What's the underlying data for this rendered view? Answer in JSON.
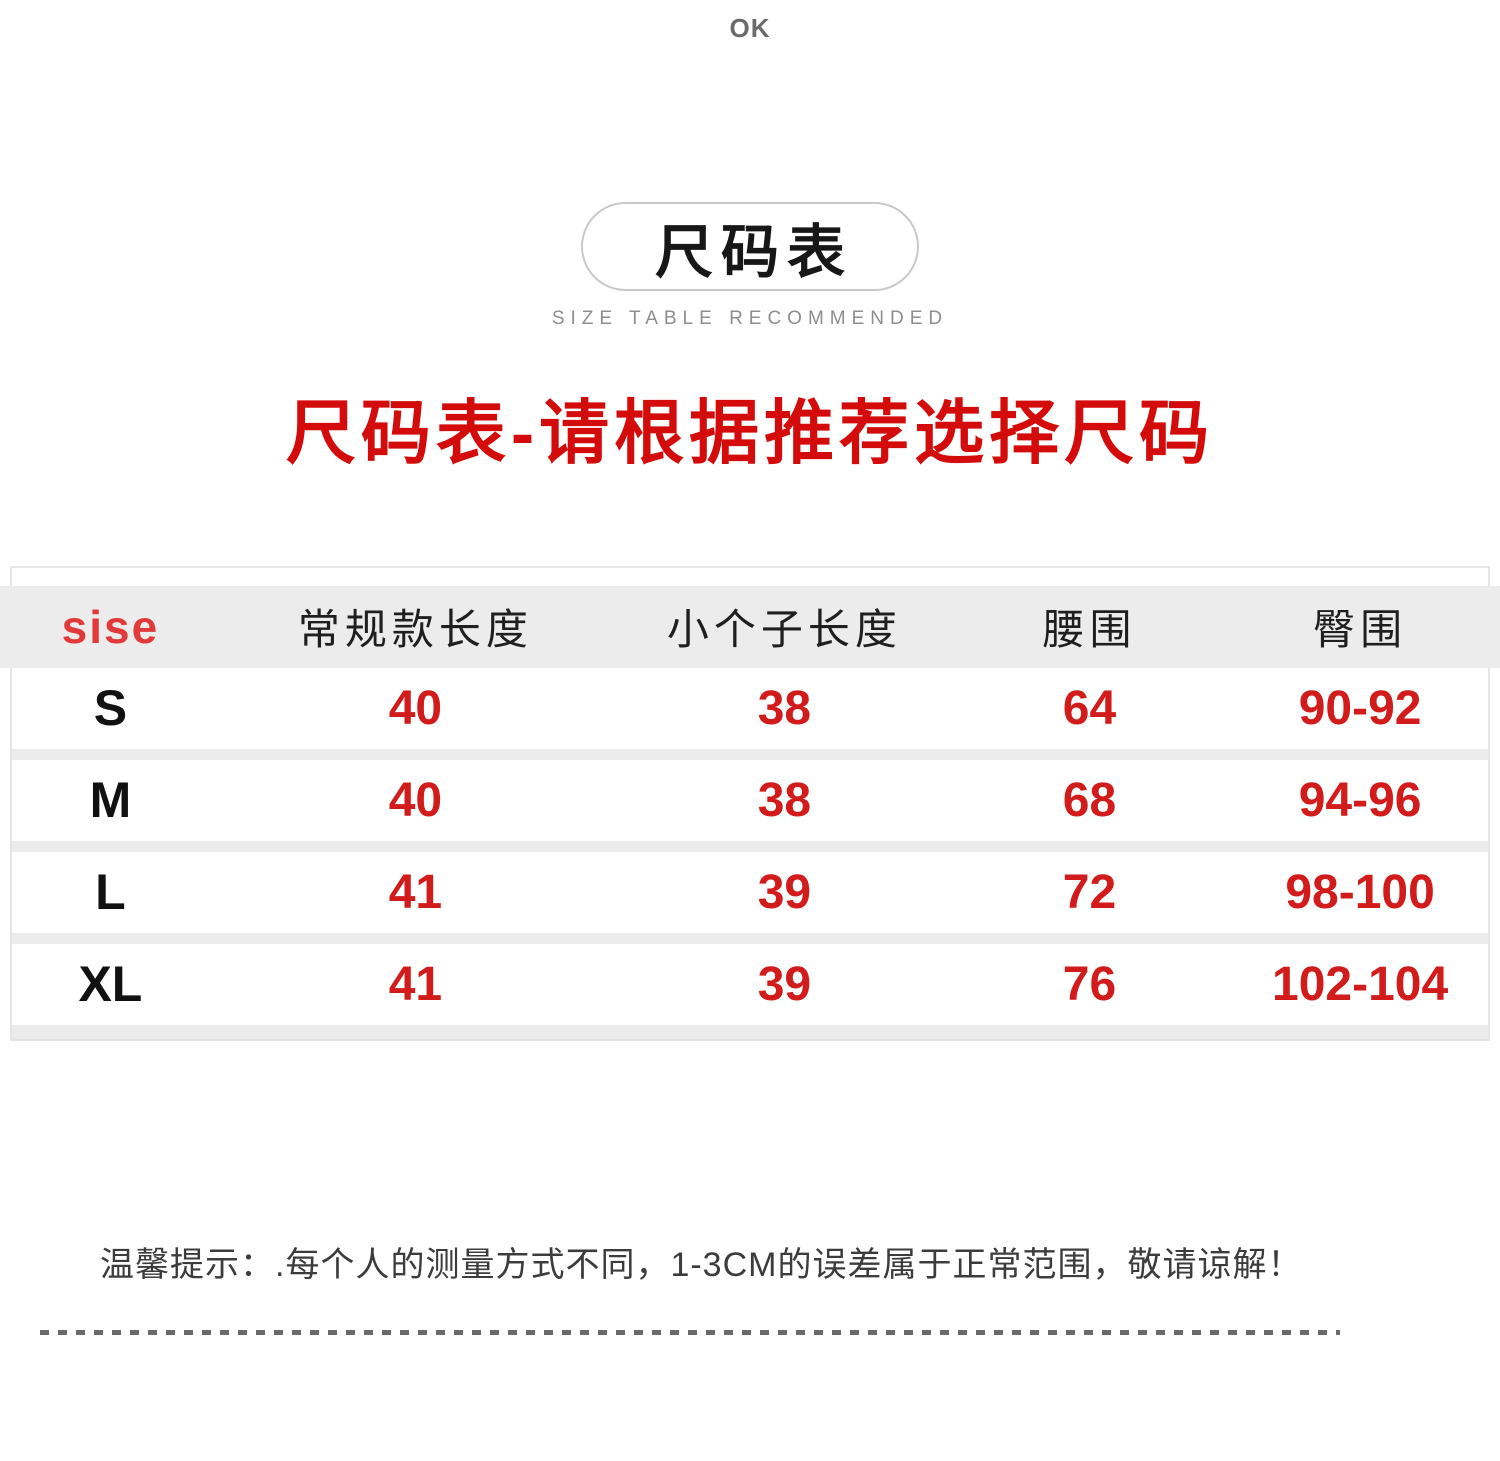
{
  "page": {
    "top_label": "OK"
  },
  "header": {
    "pill_title": "尺码表",
    "subtitle": "SIZE TABLE RECOMMENDED",
    "heading": "尺码表-请根据推荐选择尺码"
  },
  "size_table": {
    "columns": [
      "sise",
      "常规款长度",
      "小个子长度",
      "腰围",
      "臀围"
    ],
    "rows": [
      {
        "size": "S",
        "values": [
          "40",
          "38",
          "64",
          "90-92"
        ]
      },
      {
        "size": "M",
        "values": [
          "40",
          "38",
          "68",
          "94-96"
        ]
      },
      {
        "size": "L",
        "values": [
          "41",
          "39",
          "72",
          "98-100"
        ]
      },
      {
        "size": "XL",
        "values": [
          "41",
          "39",
          "76",
          "102-104"
        ]
      }
    ]
  },
  "note": {
    "text": "温馨提示：.每个人的测量方式不同，1-3CM的误差属于正常范围，敬请谅解！"
  },
  "colors": {
    "accent_red": "#d40b0b",
    "value_red": "#d21b1b",
    "sise_red": "#e23a3a",
    "band_gray": "#ececec",
    "frame_gray": "#e5e5e5",
    "dash_gray": "#6a6a6a"
  }
}
